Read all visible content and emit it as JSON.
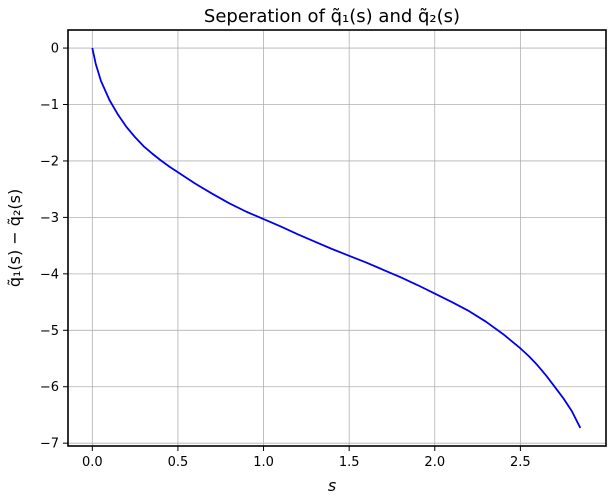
{
  "chart_data": {
    "type": "line",
    "title": "Seperation of q̃₁(s) and  q̃₂(s)",
    "xlabel": "s",
    "ylabel": "q̃₁(s) − q̃₂(s)",
    "xlim": [
      -0.142,
      3.0
    ],
    "ylim": [
      -7.05,
      0.32
    ],
    "xticks": [
      0.0,
      0.5,
      1.0,
      1.5,
      2.0,
      2.5
    ],
    "xtick_labels": [
      "0.0",
      "0.5",
      "1.0",
      "1.5",
      "2.0",
      "2.5"
    ],
    "yticks": [
      0,
      -1,
      -2,
      -3,
      -4,
      -5,
      -6,
      -7
    ],
    "ytick_labels": [
      "0",
      "−1",
      "−2",
      "−3",
      "−4",
      "−5",
      "−6",
      "−7"
    ],
    "grid": true,
    "series": [
      {
        "color": "#0000ee",
        "x": [
          0.0,
          0.02,
          0.05,
          0.1,
          0.15,
          0.2,
          0.25,
          0.3,
          0.35,
          0.4,
          0.45,
          0.5,
          0.6,
          0.7,
          0.8,
          0.9,
          1.0,
          1.1,
          1.2,
          1.3,
          1.4,
          1.5,
          1.6,
          1.7,
          1.8,
          1.9,
          2.0,
          2.1,
          2.2,
          2.3,
          2.4,
          2.5,
          2.55,
          2.6,
          2.65,
          2.7,
          2.75,
          2.8,
          2.85
        ],
        "y": [
          0.0,
          -0.28,
          -0.58,
          -0.92,
          -1.18,
          -1.4,
          -1.58,
          -1.74,
          -1.87,
          -1.99,
          -2.1,
          -2.2,
          -2.4,
          -2.58,
          -2.75,
          -2.9,
          -3.03,
          -3.16,
          -3.3,
          -3.43,
          -3.56,
          -3.68,
          -3.8,
          -3.93,
          -4.06,
          -4.2,
          -4.35,
          -4.5,
          -4.66,
          -4.85,
          -5.07,
          -5.32,
          -5.46,
          -5.62,
          -5.8,
          -6.0,
          -6.2,
          -6.43,
          -6.73
        ]
      }
    ]
  }
}
